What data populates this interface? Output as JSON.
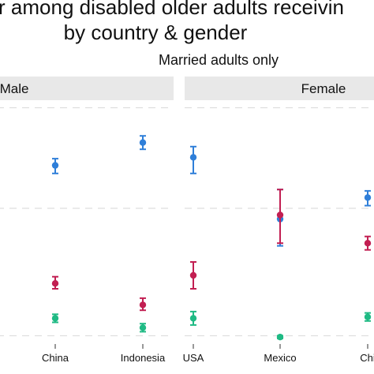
{
  "title": {
    "line1": "r among disabled older adults receivin",
    "line2": "by country & gender",
    "subtitle": "Married adults only"
  },
  "colors": {
    "blue": "#2f7fd9",
    "red": "#c21f52",
    "green": "#1fba84",
    "strip": "#e8e8e8",
    "grid": "#dedede"
  },
  "chart_data": {
    "type": "scatter",
    "error_bars": true,
    "grid": "horizontal dashed",
    "panels": [
      {
        "label": "Male",
        "categories": [
          "China",
          "Indonesia"
        ],
        "series": [
          {
            "color": "blue",
            "values": [
              0.66,
              0.745
            ],
            "lower": [
              0.63,
              0.72
            ],
            "upper": [
              0.685,
              0.77
            ]
          },
          {
            "color": "red",
            "values": [
              0.22,
              0.14
            ],
            "lower": [
              0.2,
              0.12
            ],
            "upper": [
              0.245,
              0.165
            ]
          },
          {
            "color": "green",
            "values": [
              0.09,
              0.055
            ],
            "lower": [
              0.075,
              0.04
            ],
            "upper": [
              0.105,
              0.07
            ]
          }
        ]
      },
      {
        "label": "Female",
        "categories": [
          "USA",
          "Mexico",
          "Chi"
        ],
        "series": [
          {
            "color": "blue",
            "values": [
              0.69,
              0.46,
              0.54
            ],
            "lower": [
              0.63,
              0.36,
              0.51
            ],
            "upper": [
              0.73,
              0.57,
              0.565
            ]
          },
          {
            "color": "red",
            "values": [
              0.25,
              0.475,
              0.37
            ],
            "lower": [
              0.2,
              0.37,
              0.345
            ],
            "upper": [
              0.3,
              0.57,
              0.395
            ]
          },
          {
            "color": "green",
            "values": [
              0.09,
              0.02,
              0.095
            ],
            "lower": [
              0.065,
              0.015,
              0.08
            ],
            "upper": [
              0.115,
              0.025,
              0.11
            ]
          }
        ]
      }
    ],
    "ylim": [
      0,
      0.9
    ]
  }
}
